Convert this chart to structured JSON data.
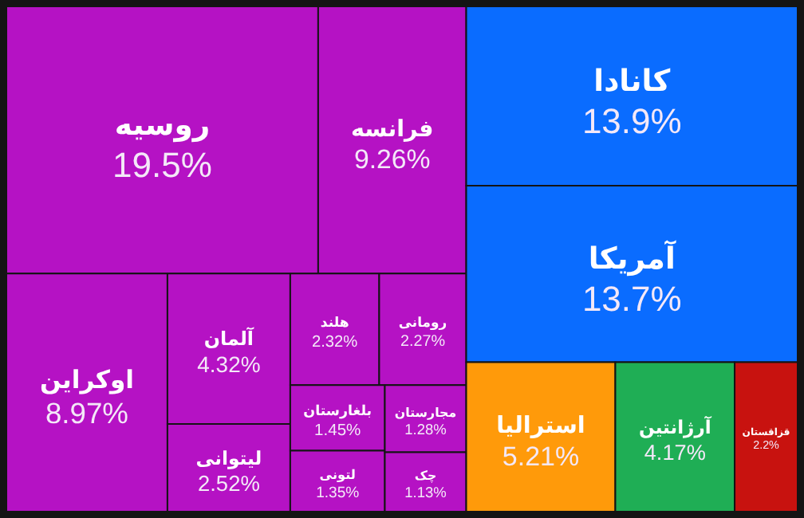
{
  "chart_data": {
    "type": "other",
    "categories": [
      "روسیه",
      "فرانسه",
      "اوکراین",
      "آلمان",
      "لیتوانی",
      "هلند",
      "رومانی",
      "بلغارستان",
      "لتونی",
      "مجارستان",
      "چک",
      "کانادا",
      "آمریکا",
      "استرالیا",
      "آرژانتین",
      "قزاقستان"
    ],
    "values": [
      19.5,
      9.26,
      8.97,
      4.32,
      2.52,
      2.32,
      2.27,
      1.45,
      1.35,
      1.28,
      1.13,
      13.9,
      13.7,
      5.21,
      4.17,
      2.2
    ],
    "value_labels": [
      "19.5%",
      "9.26%",
      "8.97%",
      "4.32%",
      "2.52%",
      "2.32%",
      "2.27%",
      "1.45%",
      "1.35%",
      "1.28%",
      "1.13%",
      "13.9%",
      "13.7%",
      "5.21%",
      "4.17%",
      "2.2%"
    ],
    "colors": [
      "#b512c4",
      "#b512c4",
      "#b512c4",
      "#b512c4",
      "#b512c4",
      "#b512c4",
      "#b512c4",
      "#b512c4",
      "#b512c4",
      "#b512c4",
      "#b512c4",
      "#0a6cff",
      "#0a6cff",
      "#ff9a0a",
      "#1fae55",
      "#c8120f"
    ]
  }
}
